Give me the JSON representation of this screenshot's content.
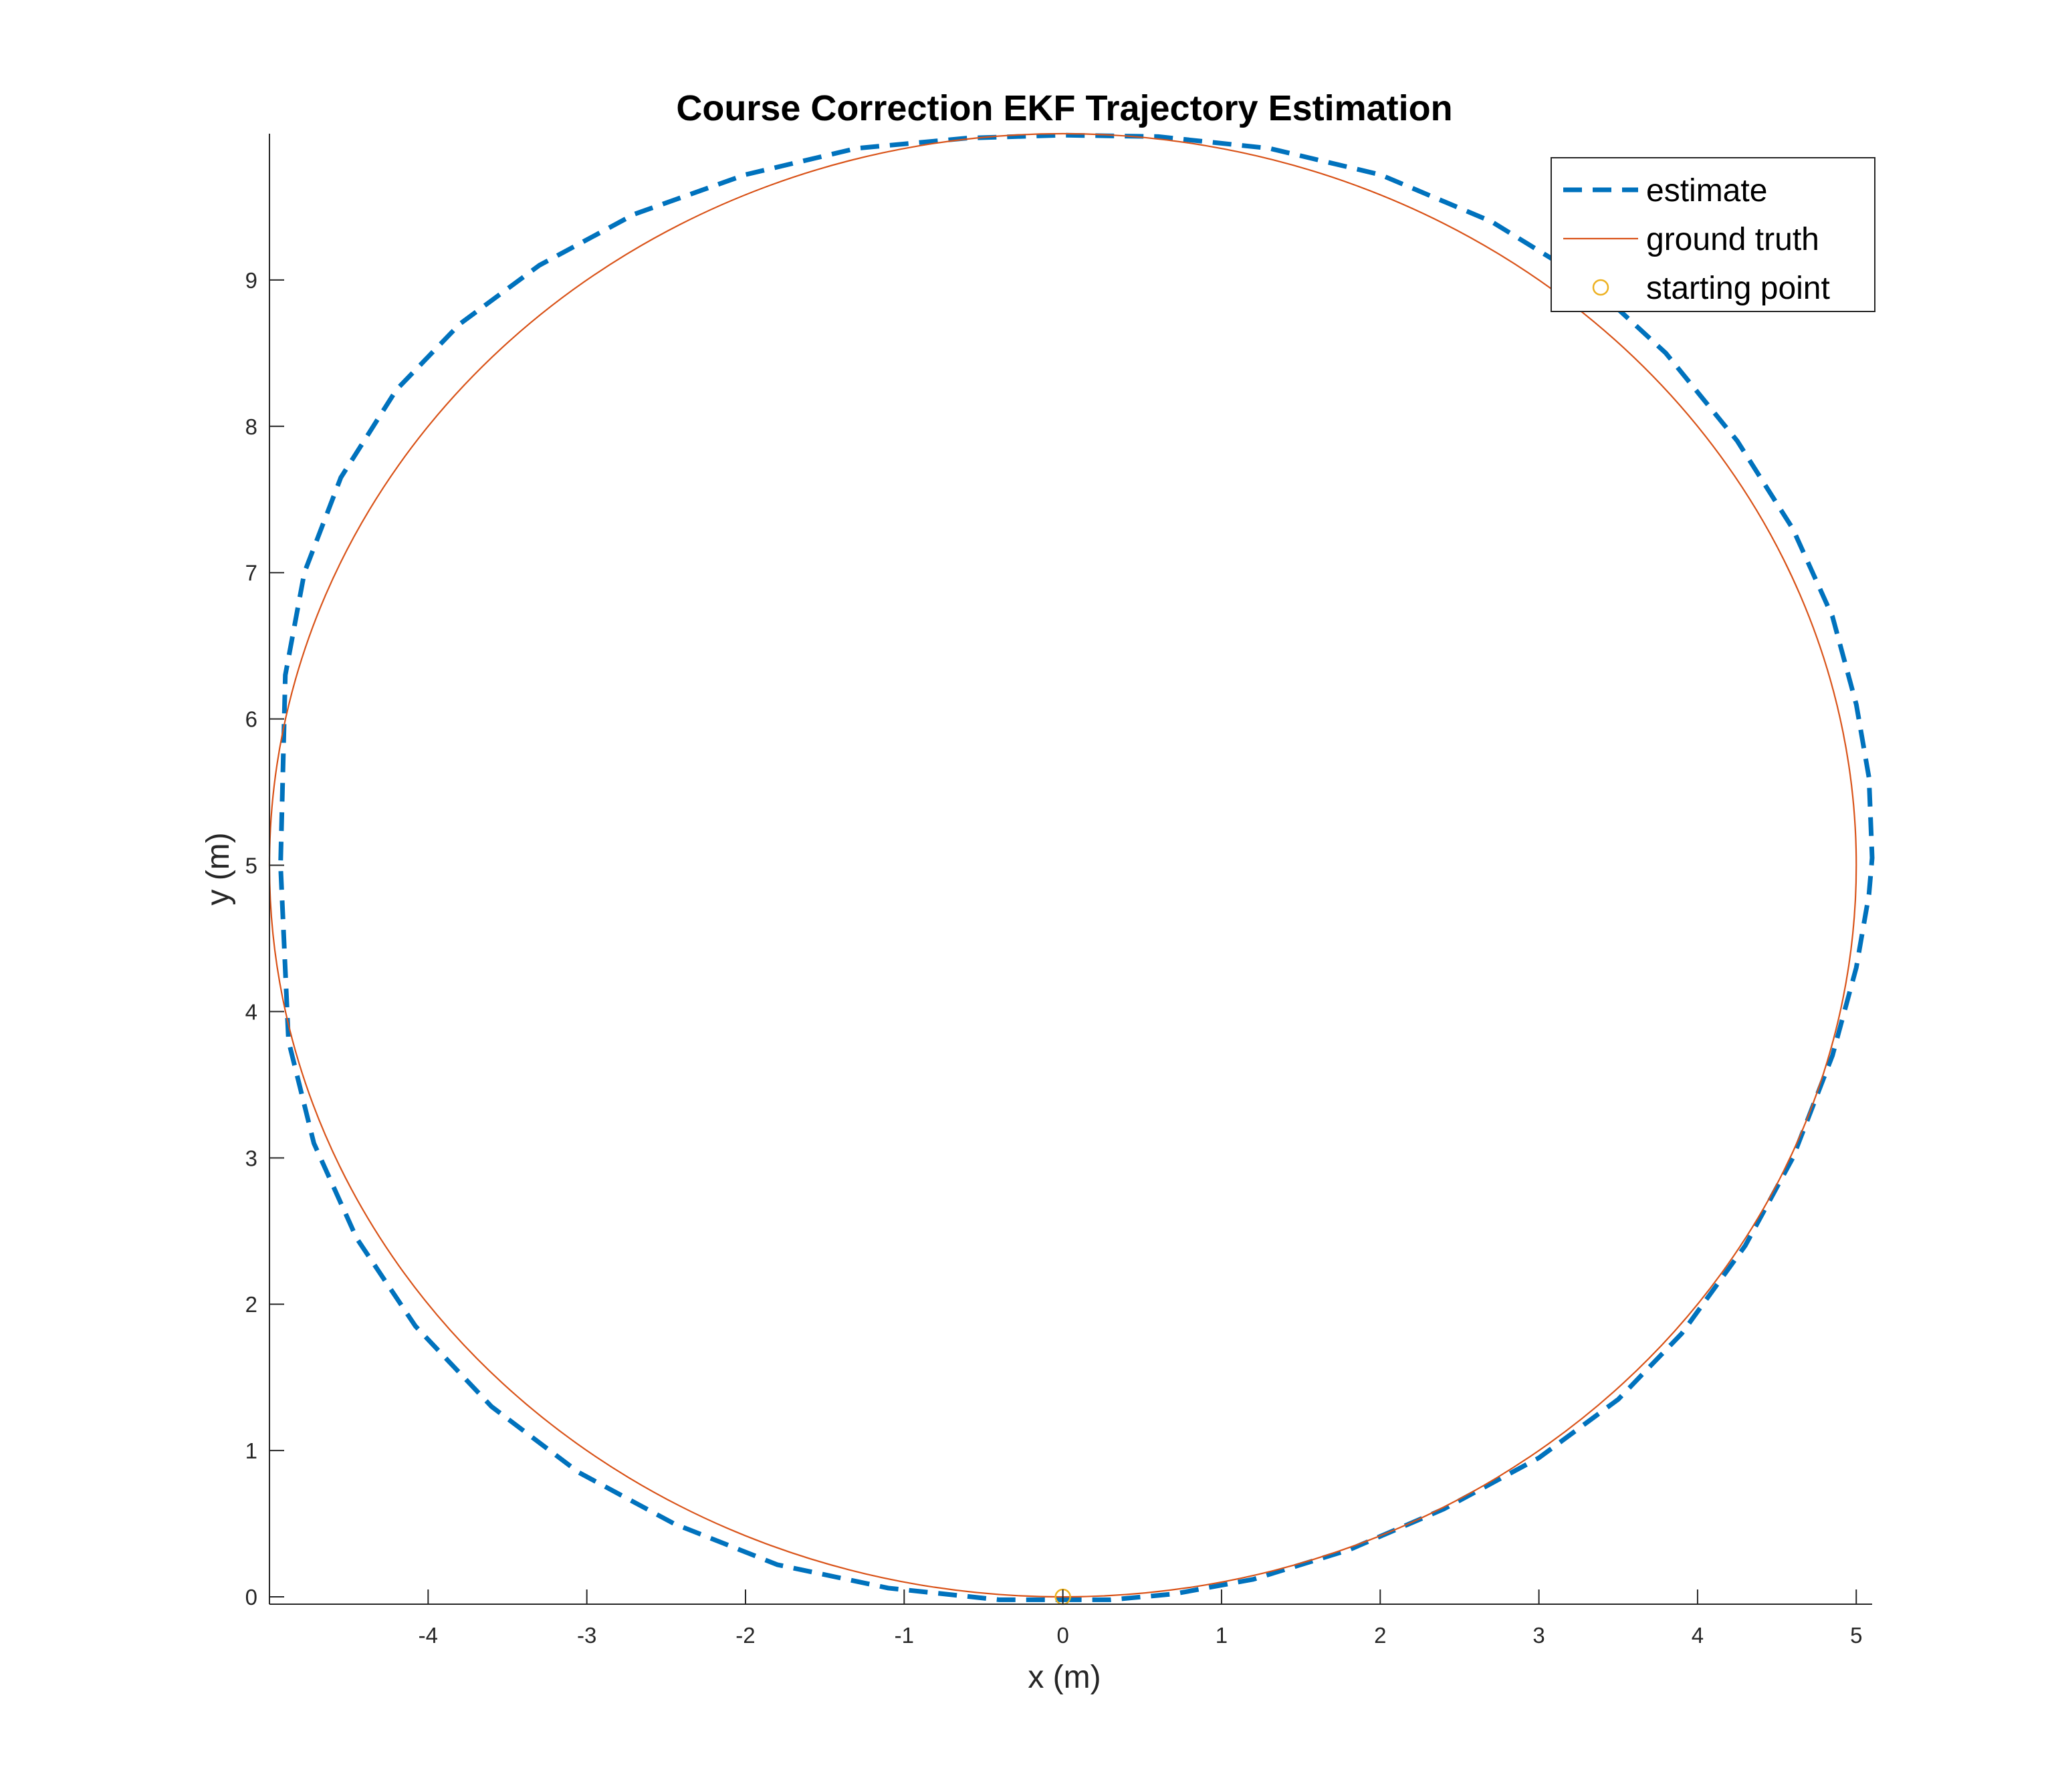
{
  "chart_data": {
    "type": "line",
    "title": "Course Correction EKF Trajectory Estimation",
    "xlabel": "x (m)",
    "ylabel": "y (m)",
    "xlim": [
      -5,
      5.1
    ],
    "ylim": [
      -0.05,
      10
    ],
    "xticks": [
      -4,
      -3,
      -2,
      -1,
      0,
      1,
      2,
      3,
      4,
      5
    ],
    "yticks": [
      0,
      1,
      2,
      3,
      4,
      5,
      6,
      7,
      8,
      9
    ],
    "grid": false,
    "legend_position": "top-right",
    "series": [
      {
        "name": "estimate",
        "style": "dashed",
        "color": "#0072bd",
        "x": [
          0.0,
          0.3,
          0.7,
          1.2,
          1.8,
          2.4,
          3.0,
          3.5,
          3.9,
          4.3,
          4.6,
          4.85,
          5.0,
          5.08,
          5.1,
          5.08,
          5.0,
          4.85,
          4.6,
          4.25,
          3.8,
          3.3,
          2.7,
          2.0,
          1.3,
          0.6,
          0.0,
          -0.6,
          -1.3,
          -2.0,
          -2.7,
          -3.3,
          -3.8,
          -4.2,
          -4.55,
          -4.78,
          -4.9,
          -4.93,
          -4.88,
          -4.72,
          -4.45,
          -4.08,
          -3.6,
          -3.05,
          -2.45,
          -1.8,
          -1.1,
          -0.4,
          0.0
        ],
        "y": [
          -0.02,
          -0.02,
          0.02,
          0.12,
          0.32,
          0.6,
          0.95,
          1.35,
          1.8,
          2.4,
          3.0,
          3.7,
          4.3,
          4.8,
          5.05,
          5.6,
          6.1,
          6.7,
          7.3,
          7.9,
          8.5,
          9.0,
          9.4,
          9.72,
          9.9,
          9.98,
          9.99,
          9.97,
          9.9,
          9.72,
          9.45,
          9.1,
          8.7,
          8.25,
          7.65,
          7.0,
          6.3,
          5.0,
          3.8,
          3.1,
          2.45,
          1.85,
          1.3,
          0.85,
          0.5,
          0.22,
          0.06,
          -0.02,
          -0.02
        ]
      },
      {
        "name": "ground truth",
        "style": "solid",
        "color": "#d95319",
        "shape": "circle",
        "center": [
          0,
          5
        ],
        "radius": 5
      },
      {
        "name": "starting point",
        "style": "marker",
        "color": "#edb120",
        "x": [
          0
        ],
        "y": [
          0
        ]
      }
    ]
  }
}
